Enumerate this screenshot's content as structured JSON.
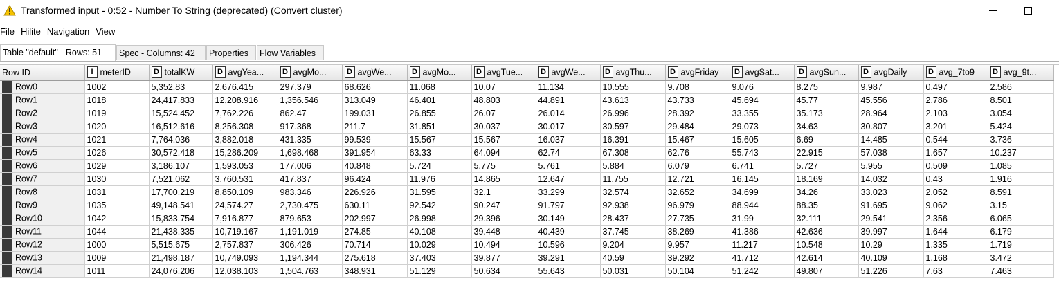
{
  "window": {
    "title": "Transformed input - 0:52 - Number To String (deprecated) (Convert cluster)",
    "warning_color": "#f5c200"
  },
  "menu": [
    "File",
    "Hilite",
    "Navigation",
    "View"
  ],
  "tabs": [
    {
      "label": "Table \"default\" - Rows: 51",
      "active": true
    },
    {
      "label": "Spec - Columns: 42",
      "active": false
    },
    {
      "label": "Properties",
      "active": false
    },
    {
      "label": "Flow Variables",
      "active": false
    }
  ],
  "table": {
    "rowid_header": "Row ID",
    "columns": [
      {
        "type": "I",
        "name": "meterID"
      },
      {
        "type": "D",
        "name": "totalKW"
      },
      {
        "type": "D",
        "name": "avgYea..."
      },
      {
        "type": "D",
        "name": "avgMo..."
      },
      {
        "type": "D",
        "name": "avgWe..."
      },
      {
        "type": "D",
        "name": "avgMo..."
      },
      {
        "type": "D",
        "name": "avgTue..."
      },
      {
        "type": "D",
        "name": "avgWe..."
      },
      {
        "type": "D",
        "name": "avgThu..."
      },
      {
        "type": "D",
        "name": "avgFriday"
      },
      {
        "type": "D",
        "name": "avgSat..."
      },
      {
        "type": "D",
        "name": "avgSun..."
      },
      {
        "type": "D",
        "name": "avgDaily"
      },
      {
        "type": "D",
        "name": "avg_7to9"
      },
      {
        "type": "D",
        "name": "avg_9t..."
      }
    ],
    "rows": [
      {
        "id": "Row0",
        "cells": [
          "1002",
          "5,352.83",
          "2,676.415",
          "297.379",
          "68.626",
          "11.068",
          "10.07",
          "11.134",
          "10.555",
          "9.708",
          "9.076",
          "8.275",
          "9.987",
          "0.497",
          "2.586"
        ]
      },
      {
        "id": "Row1",
        "cells": [
          "1018",
          "24,417.833",
          "12,208.916",
          "1,356.546",
          "313.049",
          "46.401",
          "48.803",
          "44.891",
          "43.613",
          "43.733",
          "45.694",
          "45.77",
          "45.556",
          "2.786",
          "8.501"
        ]
      },
      {
        "id": "Row2",
        "cells": [
          "1019",
          "15,524.452",
          "7,762.226",
          "862.47",
          "199.031",
          "26.855",
          "26.07",
          "26.014",
          "26.996",
          "28.392",
          "33.355",
          "35.173",
          "28.964",
          "2.103",
          "3.054"
        ]
      },
      {
        "id": "Row3",
        "cells": [
          "1020",
          "16,512.616",
          "8,256.308",
          "917.368",
          "211.7",
          "31.851",
          "30.037",
          "30.017",
          "30.597",
          "29.484",
          "29.073",
          "34.63",
          "30.807",
          "3.201",
          "5.424"
        ]
      },
      {
        "id": "Row4",
        "cells": [
          "1021",
          "7,764.036",
          "3,882.018",
          "431.335",
          "99.539",
          "15.567",
          "15.567",
          "16.037",
          "16.391",
          "15.467",
          "15.605",
          "6.69",
          "14.485",
          "0.544",
          "3.736"
        ]
      },
      {
        "id": "Row5",
        "cells": [
          "1026",
          "30,572.418",
          "15,286.209",
          "1,698.468",
          "391.954",
          "63.33",
          "64.094",
          "62.74",
          "67.308",
          "62.76",
          "55.743",
          "22.915",
          "57.038",
          "1.657",
          "10.237"
        ]
      },
      {
        "id": "Row6",
        "cells": [
          "1029",
          "3,186.107",
          "1,593.053",
          "177.006",
          "40.848",
          "5.724",
          "5.775",
          "5.761",
          "5.884",
          "6.079",
          "6.741",
          "5.727",
          "5.955",
          "0.509",
          "1.085"
        ]
      },
      {
        "id": "Row7",
        "cells": [
          "1030",
          "7,521.062",
          "3,760.531",
          "417.837",
          "96.424",
          "11.976",
          "14.865",
          "12.647",
          "11.755",
          "12.721",
          "16.145",
          "18.169",
          "14.032",
          "0.43",
          "1.916"
        ]
      },
      {
        "id": "Row8",
        "cells": [
          "1031",
          "17,700.219",
          "8,850.109",
          "983.346",
          "226.926",
          "31.595",
          "32.1",
          "33.299",
          "32.574",
          "32.652",
          "34.699",
          "34.26",
          "33.023",
          "2.052",
          "8.591"
        ]
      },
      {
        "id": "Row9",
        "cells": [
          "1035",
          "49,148.541",
          "24,574.27",
          "2,730.475",
          "630.11",
          "92.542",
          "90.247",
          "91.797",
          "92.938",
          "96.979",
          "88.944",
          "88.35",
          "91.695",
          "9.062",
          "3.15"
        ]
      },
      {
        "id": "Row10",
        "cells": [
          "1042",
          "15,833.754",
          "7,916.877",
          "879.653",
          "202.997",
          "26.998",
          "29.396",
          "30.149",
          "28.437",
          "27.735",
          "31.99",
          "32.111",
          "29.541",
          "2.356",
          "6.065"
        ]
      },
      {
        "id": "Row11",
        "cells": [
          "1044",
          "21,438.335",
          "10,719.167",
          "1,191.019",
          "274.85",
          "40.108",
          "39.448",
          "40.439",
          "37.745",
          "38.269",
          "41.386",
          "42.636",
          "39.997",
          "1.644",
          "6.179"
        ]
      },
      {
        "id": "Row12",
        "cells": [
          "1000",
          "5,515.675",
          "2,757.837",
          "306.426",
          "70.714",
          "10.029",
          "10.494",
          "10.596",
          "9.204",
          "9.957",
          "11.217",
          "10.548",
          "10.29",
          "1.335",
          "1.719"
        ]
      },
      {
        "id": "Row13",
        "cells": [
          "1009",
          "21,498.187",
          "10,749.093",
          "1,194.344",
          "275.618",
          "37.403",
          "39.877",
          "39.291",
          "40.59",
          "39.292",
          "41.712",
          "42.614",
          "40.109",
          "1.168",
          "3.472"
        ]
      },
      {
        "id": "Row14",
        "cells": [
          "1011",
          "24,076.206",
          "12,038.103",
          "1,504.763",
          "348.931",
          "51.129",
          "50.634",
          "55.643",
          "50.031",
          "50.104",
          "51.242",
          "49.807",
          "51.226",
          "7.63",
          "7.463"
        ]
      }
    ]
  }
}
